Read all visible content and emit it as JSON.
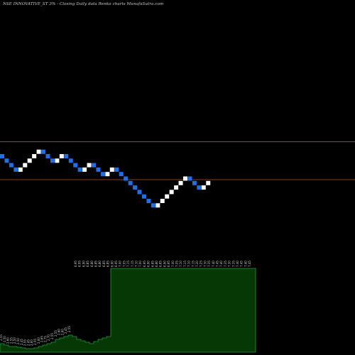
{
  "title": "NSE INNOVATIVE_ST 3% -  Closing Daily data  Renko  charts MunafaSutra.com",
  "colors": {
    "background": "#000000",
    "up_brick": "#ffffff",
    "down_brick": "#1e6fe8",
    "reference_line": "#b5581f",
    "volume_fill": "#063806",
    "volume_stroke": "#1f9a3a"
  },
  "chart_data": {
    "type": "renko",
    "title": "NSE INNOVATIVE_ST 3% -  Closing Daily data  Renko  charts MunafaSutra.com",
    "brick_size_percent": 3,
    "directions": [
      "down",
      "down",
      "down",
      "down",
      "up",
      "up",
      "up",
      "up",
      "up",
      "down",
      "down",
      "down",
      "up",
      "up",
      "down",
      "down",
      "down",
      "down",
      "up",
      "up",
      "down",
      "down",
      "down",
      "up",
      "up",
      "down",
      "down",
      "down",
      "down",
      "down",
      "down",
      "down",
      "down",
      "down",
      "up",
      "up",
      "up",
      "up",
      "up",
      "up",
      "up",
      "down",
      "down",
      "down",
      "up",
      "up"
    ],
    "brick_levels": [
      0,
      -1,
      -2,
      -3,
      -3,
      -2,
      -1,
      0,
      1,
      1,
      0,
      -1,
      -1,
      0,
      0,
      -1,
      -2,
      -3,
      -3,
      -2,
      -2,
      -3,
      -4,
      -4,
      -3,
      -3,
      -4,
      -5,
      -6,
      -7,
      -8,
      -9,
      -10,
      -11,
      -11,
      -10,
      -9,
      -8,
      -7,
      -6,
      -5,
      -5,
      -6,
      -7,
      -7,
      -6
    ],
    "reference_lines": [
      0,
      1
    ],
    "volume_panel": {
      "series": [
        {
          "values": [
            12,
            10,
            8,
            8,
            7,
            6,
            5,
            5,
            6,
            8,
            10,
            12,
            14,
            18,
            20,
            22,
            24,
            22,
            18,
            16,
            14,
            12,
            15,
            18,
            20,
            22,
            118,
            118,
            118,
            118,
            118,
            118,
            118,
            118,
            118,
            118,
            118,
            118,
            118,
            118,
            118,
            118,
            118,
            118,
            118,
            118,
            118,
            118,
            118,
            118,
            118,
            118,
            118,
            118,
            118,
            118,
            118,
            118,
            118,
            118
          ]
        }
      ],
      "left_labels": [
        "2.55",
        "2.50",
        "2.60",
        "2.55",
        "2.50",
        "2.50",
        "2.45",
        "2.55",
        "2.45",
        "2.60",
        "2.55",
        "2.60",
        "2.65",
        "2.75",
        "2.70",
        "2.55",
        "2.55",
        "2.60",
        "2.60",
        "2.45",
        "2.55"
      ],
      "right_labels": [
        "6.95",
        "6.95",
        "6.90",
        "6.85",
        "6.80",
        "6.85",
        "6.80",
        "6.85",
        "6.85",
        "6.90",
        "6.95",
        "7.00",
        "7.05",
        "7.15",
        "7.15",
        "7.10",
        "7.00",
        "6.95",
        "6.90",
        "6.85",
        "6.80",
        "6.85",
        "6.90",
        "6.95",
        "7.00",
        "7.05",
        "7.10",
        "7.15",
        "7.10",
        "7.15",
        "7.20",
        "7.25",
        "7.30",
        "7.35",
        "7.40",
        "7.45",
        "7.40",
        "7.35",
        "7.30",
        "7.35",
        "7.40",
        "7.45",
        "7.40",
        "7.45"
      ]
    }
  }
}
